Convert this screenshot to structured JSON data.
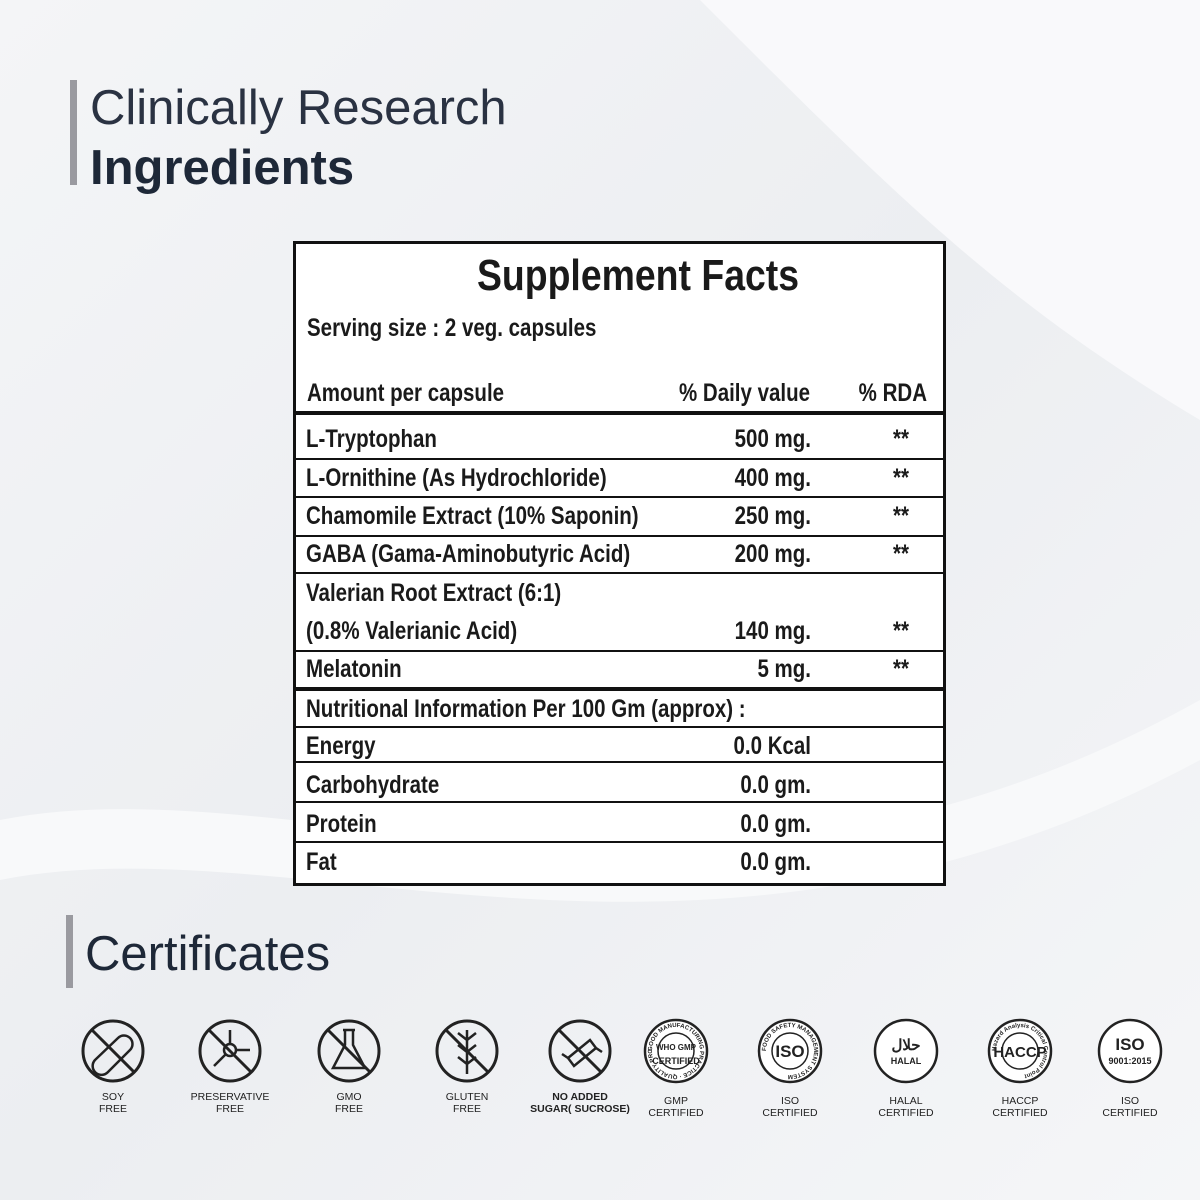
{
  "header": {
    "line1": "Clinically Research",
    "line2": "Ingredients"
  },
  "table": {
    "title": "Supplement Facts",
    "serving": "Serving size : 2 veg. capsules",
    "columns": [
      "Amount per capsule",
      "% Daily value",
      "% RDA"
    ],
    "rows": [
      {
        "name": [
          "L-Tryptophan"
        ],
        "amount": "500 mg.",
        "rda": "**"
      },
      {
        "name": [
          "L-Ornithine (As Hydrochloride)"
        ],
        "amount": "400 mg.",
        "rda": "**"
      },
      {
        "name": [
          "Chamomile Extract (10% Saponin)"
        ],
        "amount": "250 mg.",
        "rda": "**"
      },
      {
        "name": [
          "GABA (Gama-Aminobutyric Acid)"
        ],
        "amount": "200 mg.",
        "rda": "**"
      },
      {
        "name": [
          "Valerian Root Extract (6:1)",
          "(0.8% Valerianic Acid)"
        ],
        "amount": "140 mg.",
        "rda": "**"
      },
      {
        "name": [
          "Melatonin"
        ],
        "amount": "5 mg.",
        "rda": "**"
      }
    ],
    "nutrition_title": "Nutritional Information Per 100 Gm (approx) :",
    "nutrition": [
      {
        "name": "Energy",
        "amount": "0.0 Kcal"
      },
      {
        "name": "Carbohydrate",
        "amount": "0.0 gm."
      },
      {
        "name": "Protein",
        "amount": "0.0 gm."
      },
      {
        "name": "Fat",
        "amount": "0.0 gm."
      }
    ]
  },
  "certificates": {
    "title": "Certificates",
    "items": [
      {
        "label": [
          "SOY",
          "FREE"
        ]
      },
      {
        "label": [
          "PRESERVATIVE",
          "FREE"
        ]
      },
      {
        "label": [
          "GMO",
          "FREE"
        ]
      },
      {
        "label": [
          "GLUTEN",
          "FREE"
        ]
      },
      {
        "label": [
          "NO ADDED",
          "SUGAR( SUCROSE)"
        ]
      },
      {
        "label": [
          "GMP",
          "CERTIFIED"
        ],
        "badge": [
          "WHO GMP",
          "CERTIFIED"
        ],
        "ring": "GOOD MANUFACTURING PRACTICE · QUALITY PRODUCT"
      },
      {
        "label": [
          "ISO",
          "CERTIFIED"
        ],
        "badge": [
          "ISO"
        ],
        "ring": "FOOD SAFETY MANAGEMENT SYSTEM"
      },
      {
        "label": [
          "HALAL",
          "CERTIFIED"
        ],
        "badge": [
          "حلال",
          "HALAL"
        ]
      },
      {
        "label": [
          "HACCP",
          "CERTIFIED"
        ],
        "badge": [
          "HACCP"
        ],
        "ring": "Hazard Analysis Critical Control Point"
      },
      {
        "label": [
          "ISO",
          "CERTIFIED"
        ],
        "badge": [
          "ISO",
          "9001:2015"
        ]
      }
    ]
  }
}
